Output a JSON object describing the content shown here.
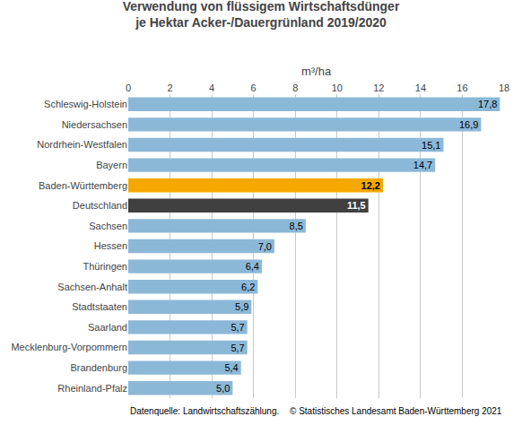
{
  "chart_data": {
    "type": "bar",
    "orientation": "horizontal",
    "title": "Verwendung von flüssigem Wirtschaftsdünger",
    "subtitle": "je Hektar Acker-/Dauergrünland 2019/2020",
    "xlabel": "m³/ha",
    "categories": [
      "Schleswig-Holstein",
      "Niedersachsen",
      "Nordrhein-Westfalen",
      "Bayern",
      "Baden-Württemberg",
      "Deutschland",
      "Sachsen",
      "Hessen",
      "Thüringen",
      "Sachsen-Anhalt",
      "Stadtstaaten",
      "Saarland",
      "Mecklenburg-Vorpommern",
      "Brandenburg",
      "Rheinland-Pfalz"
    ],
    "values": [
      17.8,
      16.9,
      15.1,
      14.7,
      12.2,
      11.5,
      8.5,
      7.0,
      6.4,
      6.2,
      5.9,
      5.7,
      5.7,
      5.4,
      5.0
    ],
    "value_labels": [
      "17,8",
      "16,9",
      "15,1",
      "14,7",
      "12,2",
      "11,5",
      "8,5",
      "7,0",
      "6,4",
      "6,2",
      "5,9",
      "5,7",
      "5,7",
      "5,4",
      "5,0"
    ],
    "data_labels": true,
    "colors": [
      "#8cb8d8",
      "#8cb8d8",
      "#8cb8d8",
      "#8cb8d8",
      "#f5a800",
      "#404040",
      "#8cb8d8",
      "#8cb8d8",
      "#8cb8d8",
      "#8cb8d8",
      "#8cb8d8",
      "#8cb8d8",
      "#8cb8d8",
      "#8cb8d8",
      "#8cb8d8"
    ],
    "xlim": [
      0,
      18
    ],
    "xticks": [
      0,
      2,
      4,
      6,
      8,
      10,
      12,
      14,
      16,
      18
    ],
    "grid": true,
    "annotations": [
      "Datenquelle: Landwirtschaftszählung.",
      "© Statistisches Landesamt Baden-Württemberg 2021"
    ]
  }
}
